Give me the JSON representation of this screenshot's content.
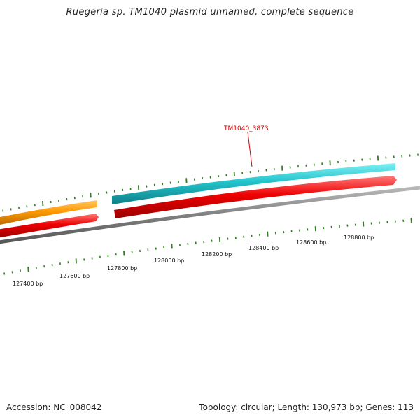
{
  "title": "Ruegeria sp. TM1040 plasmid unnamed, complete sequence",
  "footer": {
    "accession": "Accession: NC_008042",
    "topology": "Topology: circular; Length: 130,973 bp; Genes: 113"
  },
  "gene_label": {
    "text": "TM1040_3873",
    "color": "#cc0000"
  },
  "position_labels": [
    "127400 bp",
    "127600 bp",
    "127800 bp",
    "128000 bp",
    "128200 bp",
    "128400 bp",
    "128600 bp",
    "128800 bp"
  ],
  "colors": {
    "backbone": "#808080",
    "cds_forward_cyan": "#22c4cc",
    "cds_forward_orange": "#ff9900",
    "cds_reverse_red": "#ee0000",
    "ticks": "#2e7d1f"
  }
}
